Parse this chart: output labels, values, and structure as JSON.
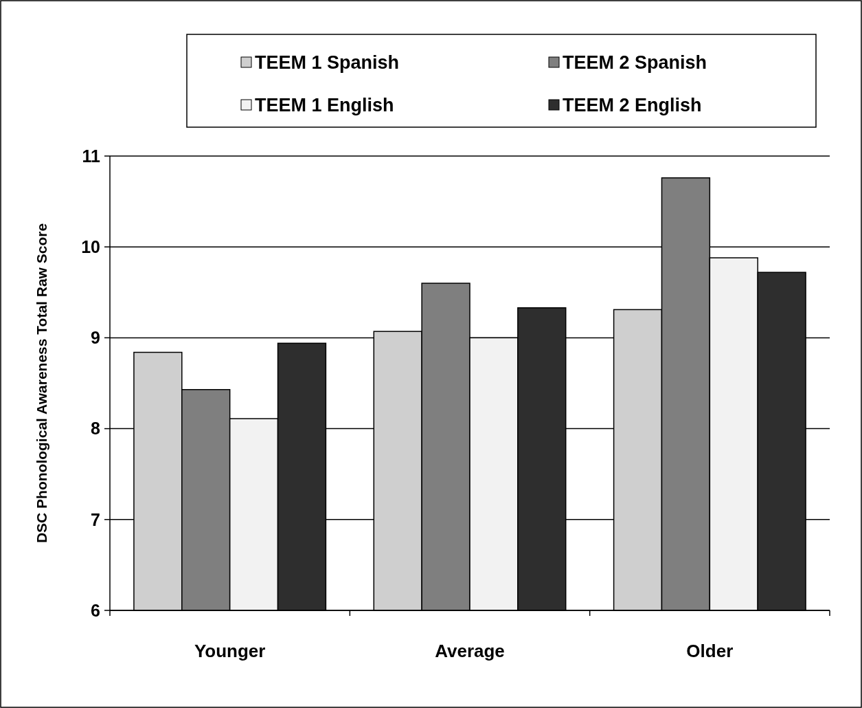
{
  "chart_data": {
    "type": "bar",
    "ylabel": "DSC Phonological Awareness Total Raw Score",
    "categories": [
      "Younger",
      "Average",
      "Older"
    ],
    "series": [
      {
        "name": "TEEM 1 Spanish",
        "color": "#cfcfcf",
        "values": [
          8.84,
          9.07,
          9.31
        ]
      },
      {
        "name": "TEEM 2 Spanish",
        "color": "#7f7f7f",
        "values": [
          8.43,
          9.6,
          10.76
        ]
      },
      {
        "name": "TEEM 1 English",
        "color": "#f2f2f2",
        "values": [
          8.11,
          9.0,
          9.88
        ]
      },
      {
        "name": "TEEM 2 English",
        "color": "#2e2e2e",
        "values": [
          8.94,
          9.33,
          9.72
        ]
      }
    ],
    "ylim": [
      6,
      11
    ],
    "yticks": [
      6,
      7,
      8,
      9,
      10,
      11
    ],
    "grid": "y",
    "legend": "top"
  }
}
